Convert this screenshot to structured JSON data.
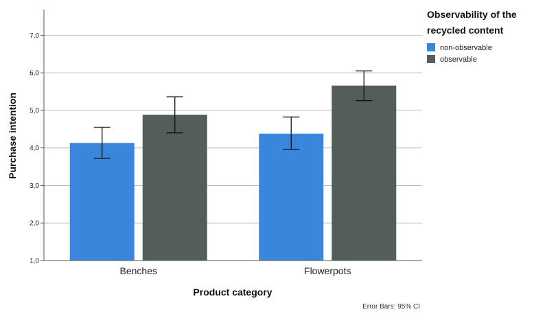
{
  "chart_data": {
    "type": "bar",
    "categories": [
      "Benches",
      "Flowerpots"
    ],
    "series": [
      {
        "name": "non-observable",
        "color": "#3a86dc",
        "values": [
          4.13,
          4.38
        ],
        "ci_low": [
          3.72,
          3.96
        ],
        "ci_high": [
          4.55,
          4.82
        ]
      },
      {
        "name": "observable",
        "color": "#545e58",
        "values": [
          4.88,
          5.66
        ],
        "ci_low": [
          4.4,
          5.26
        ],
        "ci_high": [
          5.36,
          6.05
        ]
      }
    ],
    "xlabel": "Product category",
    "ylabel": "Purchase intention",
    "ylim": [
      1.0,
      7.5
    ],
    "yticks": [
      "1,0",
      "2,0",
      "3,0",
      "4,0",
      "5,0",
      "6,0",
      "7,0"
    ],
    "ytick_values": [
      1,
      2,
      3,
      4,
      5,
      6,
      7
    ],
    "grid": true,
    "legend": {
      "title_line1": "Observability of the",
      "title_line2": "recycled content",
      "placement": "top-right"
    },
    "footnote": "Error Bars: 95% CI"
  }
}
